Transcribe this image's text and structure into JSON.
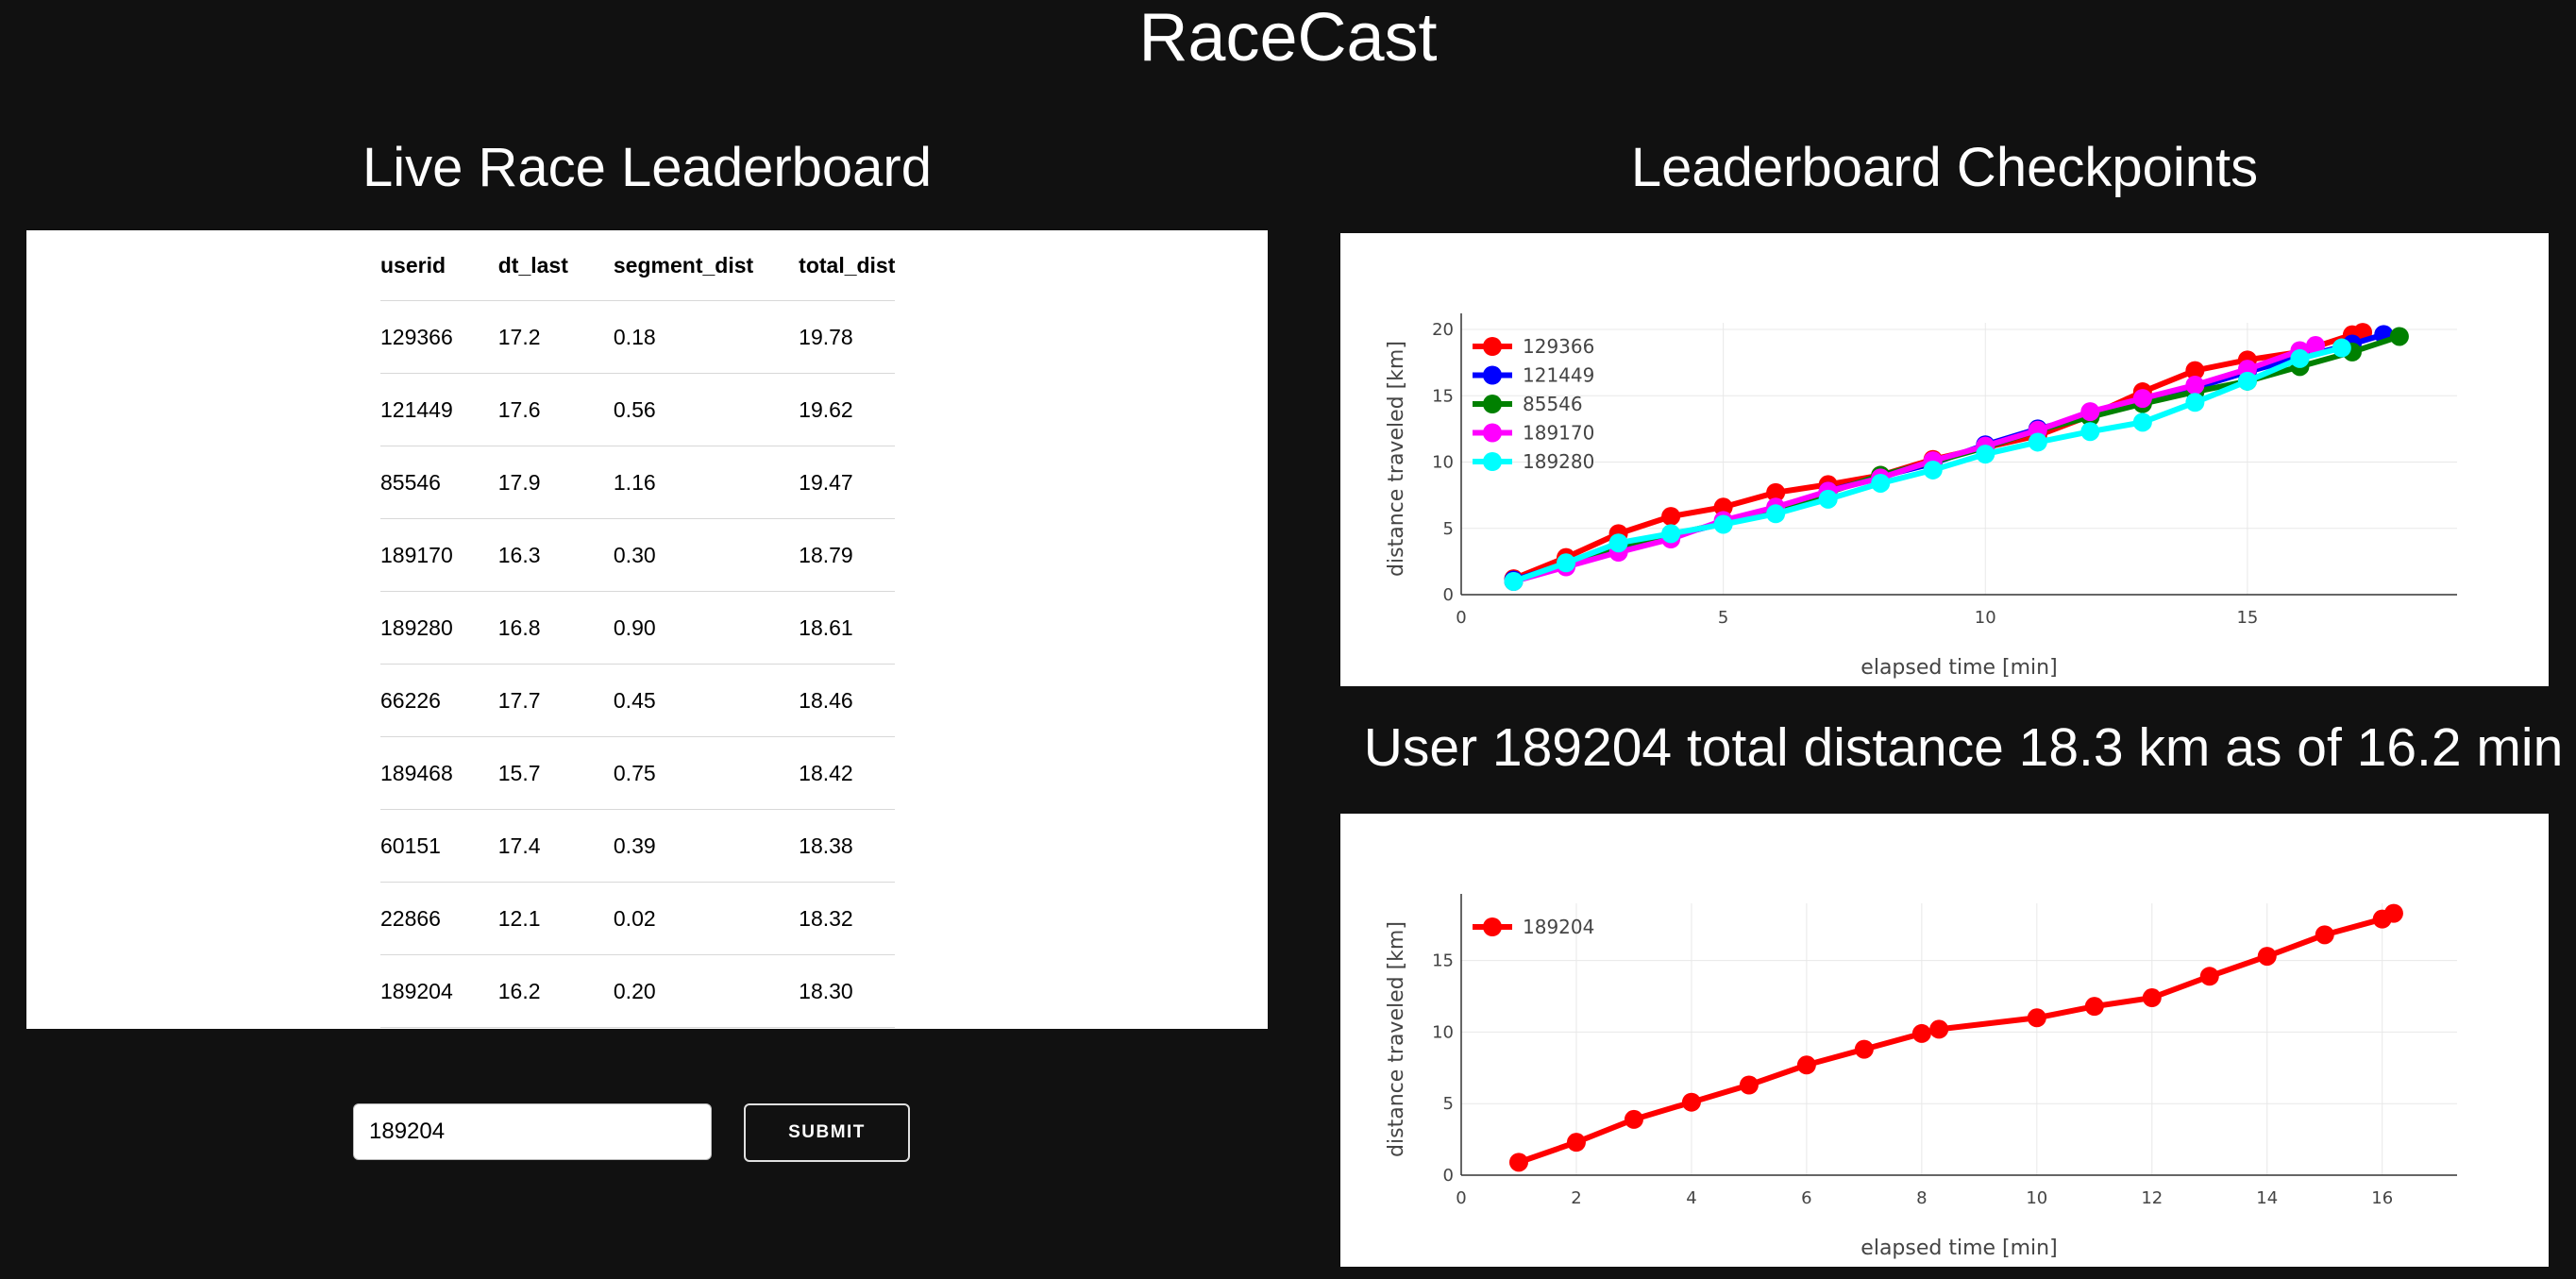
{
  "app_title": "RaceCast",
  "left_panel": {
    "title": "Live Race Leaderboard",
    "columns": [
      "userid",
      "dt_last",
      "segment_dist",
      "total_dist"
    ],
    "rows": [
      [
        "129366",
        "17.2",
        "0.18",
        "19.78"
      ],
      [
        "121449",
        "17.6",
        "0.56",
        "19.62"
      ],
      [
        "85546",
        "17.9",
        "1.16",
        "19.47"
      ],
      [
        "189170",
        "16.3",
        "0.30",
        "18.79"
      ],
      [
        "189280",
        "16.8",
        "0.90",
        "18.61"
      ],
      [
        "66226",
        "17.7",
        "0.45",
        "18.46"
      ],
      [
        "189468",
        "15.7",
        "0.75",
        "18.42"
      ],
      [
        "60151",
        "17.4",
        "0.39",
        "18.38"
      ],
      [
        "22866",
        "12.1",
        "0.02",
        "18.32"
      ],
      [
        "189204",
        "16.2",
        "0.20",
        "18.30"
      ]
    ],
    "input_value": "189204",
    "submit_label": "SUBMIT"
  },
  "right_panel": {
    "title": "Leaderboard Checkpoints",
    "user_title": "User 189204 total distance 18.3 km as of 16.2 min"
  },
  "chart_data": [
    {
      "type": "line",
      "xlabel": "elapsed time [min]",
      "ylabel": "distance traveled [km]",
      "xlim": [
        0,
        19
      ],
      "ylim": [
        0,
        20.5
      ],
      "xticks": [
        0,
        5,
        10,
        15
      ],
      "yticks": [
        0,
        5,
        10,
        15,
        20
      ],
      "legend": "top-left",
      "grid": true,
      "series": [
        {
          "name": "129366",
          "color": "#ff0000",
          "x": [
            1,
            2,
            3,
            4,
            5,
            6,
            7,
            8,
            9,
            10,
            11,
            12,
            13,
            14,
            15,
            16,
            17,
            17.2
          ],
          "y": [
            1.2,
            2.8,
            4.6,
            5.9,
            6.6,
            7.7,
            8.3,
            9.0,
            10.2,
            11.1,
            12.0,
            13.5,
            15.3,
            16.9,
            17.7,
            18.3,
            19.6,
            19.78
          ]
        },
        {
          "name": "121449",
          "color": "#0000ff",
          "x": [
            1,
            2,
            3,
            4,
            5,
            6,
            7,
            8,
            9,
            10,
            11,
            12,
            13,
            14,
            15,
            16,
            17,
            17.6
          ],
          "y": [
            1.1,
            2.3,
            3.6,
            4.4,
            5.4,
            6.5,
            7.8,
            8.9,
            9.9,
            11.3,
            12.5,
            13.5,
            14.6,
            15.6,
            16.8,
            17.9,
            18.9,
            19.62
          ]
        },
        {
          "name": "85546",
          "color": "#008000",
          "x": [
            1,
            2,
            3,
            4,
            5,
            6,
            7,
            8,
            9,
            10,
            11,
            12,
            13,
            14,
            15,
            16,
            17,
            17.9
          ],
          "y": [
            1.0,
            2.3,
            3.7,
            4.5,
            5.4,
            6.3,
            7.7,
            9.0,
            10.0,
            11.1,
            12.4,
            13.4,
            14.4,
            15.3,
            16.1,
            17.2,
            18.3,
            19.47
          ]
        },
        {
          "name": "189170",
          "color": "#ff00ff",
          "x": [
            1,
            2,
            3,
            4,
            5,
            6,
            7,
            8,
            9,
            10,
            11,
            12,
            13,
            14,
            15,
            16,
            16.3
          ],
          "y": [
            1.0,
            2.1,
            3.2,
            4.2,
            5.6,
            6.6,
            7.8,
            8.8,
            10.1,
            11.2,
            12.4,
            13.8,
            14.8,
            15.8,
            17.0,
            18.4,
            18.79
          ]
        },
        {
          "name": "189280",
          "color": "#00ffff",
          "x": [
            1,
            2,
            3,
            4,
            5,
            6,
            7,
            8,
            9,
            10,
            11,
            12,
            13,
            14,
            15,
            16,
            16.8
          ],
          "y": [
            1.0,
            2.4,
            3.9,
            4.6,
            5.3,
            6.1,
            7.2,
            8.4,
            9.4,
            10.6,
            11.5,
            12.3,
            13.0,
            14.5,
            16.1,
            17.8,
            18.61
          ]
        }
      ]
    },
    {
      "type": "line",
      "xlabel": "elapsed time [min]",
      "ylabel": "distance traveled [km]",
      "xlim": [
        0,
        17.3
      ],
      "ylim": [
        0,
        19
      ],
      "xticks": [
        0,
        2,
        4,
        6,
        8,
        10,
        12,
        14,
        16
      ],
      "yticks": [
        0,
        5,
        10,
        15
      ],
      "legend": "top-left",
      "grid": true,
      "series": [
        {
          "name": "189204",
          "color": "#ff0000",
          "x": [
            1,
            2,
            3,
            4,
            5,
            6,
            7,
            8,
            8.3,
            10,
            11,
            12,
            13,
            14,
            15,
            16,
            16.2
          ],
          "y": [
            0.9,
            2.3,
            3.9,
            5.1,
            6.3,
            7.7,
            8.8,
            9.9,
            10.2,
            11.0,
            11.8,
            12.4,
            13.9,
            15.3,
            16.8,
            17.9,
            18.3
          ]
        }
      ]
    }
  ]
}
